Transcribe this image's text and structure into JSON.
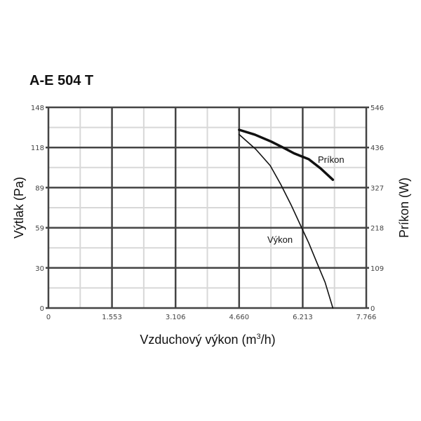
{
  "chart_data": {
    "type": "line",
    "title": "A-E 504 T",
    "xlabel": "Vzduchový výkon (m",
    "xlabel_sup": "3",
    "xlabel_end": "/h)",
    "ylabel": "Výtlak (Pa)",
    "y2label": "Príkon (W)",
    "xlim": [
      0,
      7.766
    ],
    "ylim": [
      0,
      148
    ],
    "y2lim": [
      0,
      546
    ],
    "x_ticks": [
      "0",
      "1.553",
      "3.106",
      "4.660",
      "6.213",
      "7.766"
    ],
    "y_ticks": [
      "0",
      "30",
      "59",
      "89",
      "118",
      "148"
    ],
    "y2_ticks": [
      "0",
      "109",
      "218",
      "327",
      "436",
      "546"
    ],
    "grid": true,
    "series": [
      {
        "name": "Výkon",
        "axis": "left",
        "x": [
          4.66,
          5.07,
          5.42,
          5.68,
          5.93,
          6.19,
          6.36,
          6.58,
          6.76,
          6.95
        ],
        "y": [
          128,
          117,
          105,
          91,
          76,
          59,
          48,
          32,
          19,
          0
        ]
      },
      {
        "name": "Príkon",
        "axis": "right",
        "x": [
          4.66,
          5.04,
          5.44,
          5.78,
          6.0,
          6.36,
          6.65,
          6.95
        ],
        "y": [
          485,
          472,
          453,
          434,
          421,
          405,
          380,
          349
        ]
      }
    ]
  }
}
